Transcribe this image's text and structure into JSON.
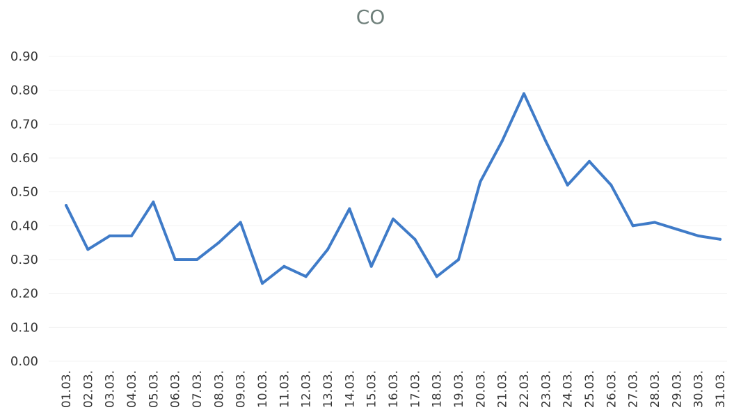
{
  "chart_data": {
    "type": "line",
    "title": "CO",
    "xlabel": "",
    "ylabel": "",
    "ylim": [
      0,
      0.9
    ],
    "yticks": [
      "0.00",
      "0.10",
      "0.20",
      "0.30",
      "0.40",
      "0.50",
      "0.60",
      "0.70",
      "0.80",
      "0.90"
    ],
    "categories": [
      "01.03.",
      "02.03.",
      "03.03.",
      "04.03.",
      "05.03.",
      "06.03.",
      "07.03.",
      "08.03.",
      "09.03.",
      "10.03.",
      "11.03.",
      "12.03.",
      "13.03.",
      "14.03.",
      "15.03.",
      "16.03.",
      "17.03.",
      "18.03.",
      "19.03.",
      "20.03.",
      "21.03.",
      "22.03.",
      "23.03.",
      "24.03.",
      "25.03.",
      "26.03.",
      "27.03.",
      "28.03.",
      "29.03.",
      "30.03.",
      "31.03."
    ],
    "series": [
      {
        "color": "#3f7bc8",
        "values": [
          0.46,
          0.33,
          0.37,
          0.37,
          0.47,
          0.3,
          0.3,
          0.35,
          0.41,
          0.23,
          0.28,
          0.25,
          0.33,
          0.45,
          0.28,
          0.42,
          0.36,
          0.25,
          0.3,
          0.53,
          0.65,
          0.79,
          0.65,
          0.52,
          0.59,
          0.52,
          0.4,
          0.41,
          0.39,
          0.37,
          0.36
        ]
      }
    ],
    "grid": false,
    "legend": "none"
  }
}
